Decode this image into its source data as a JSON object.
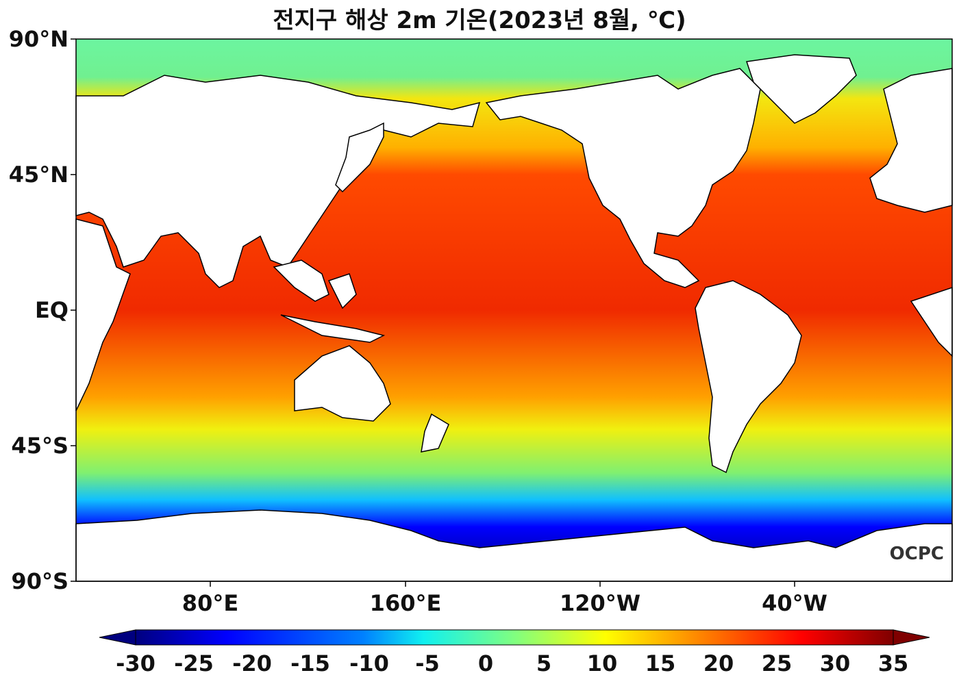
{
  "title": "전지구 해상 2m 기온(2023년 8월, ℃)",
  "y_ticks": [
    "90°N",
    "45°N",
    "EQ",
    "45°S",
    "90°S"
  ],
  "x_ticks": [
    "80°E",
    "160°E",
    "120°W",
    "40°W"
  ],
  "colorbar": {
    "ticks": [
      "-30",
      "-25",
      "-20",
      "-15",
      "-10",
      "-5",
      "0",
      "5",
      "10",
      "15",
      "20",
      "25",
      "30",
      "35"
    ],
    "range": [
      -30,
      35
    ],
    "colormap": "jet"
  },
  "logo": "OCPC",
  "colors": {
    "land": "#ffffff",
    "coast": "#000000"
  }
}
